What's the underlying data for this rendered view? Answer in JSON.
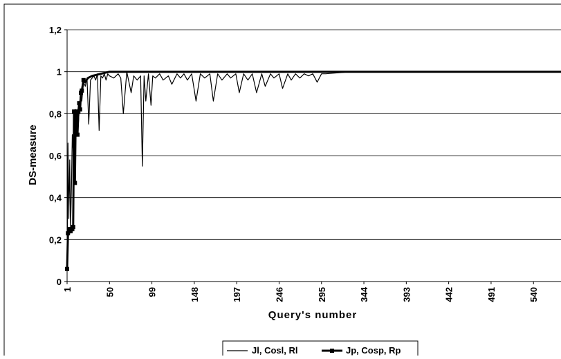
{
  "chart_data": {
    "type": "line",
    "xlabel": "Query's number",
    "ylabel": "DS-measure",
    "title": "",
    "ylim": [
      0,
      1.2
    ],
    "xlim": [
      1,
      580
    ],
    "y_ticks": [
      "0",
      "0,2",
      "0,4",
      "0,6",
      "0,8",
      "1",
      "1,2"
    ],
    "y_tick_values": [
      0,
      0.2,
      0.4,
      0.6,
      0.8,
      1.0,
      1.2
    ],
    "x_ticks": [
      "1",
      "50",
      "99",
      "148",
      "197",
      "246",
      "295",
      "344",
      "393",
      "442",
      "491",
      "540"
    ],
    "x_tick_values": [
      1,
      50,
      99,
      148,
      197,
      246,
      295,
      344,
      393,
      442,
      491,
      540
    ],
    "grid": "horizontal",
    "legend_position": "bottom",
    "series": [
      {
        "name": "Jl, Cosl, Rl",
        "color": "#000000",
        "marker": "none",
        "x": [
          1,
          2,
          3,
          4,
          5,
          6,
          7,
          8,
          9,
          10,
          11,
          12,
          13,
          14,
          15,
          16,
          18,
          20,
          22,
          24,
          26,
          28,
          30,
          32,
          34,
          36,
          38,
          40,
          42,
          44,
          46,
          48,
          50,
          55,
          60,
          63,
          66,
          70,
          75,
          78,
          82,
          86,
          88,
          90,
          92,
          95,
          98,
          100,
          103,
          108,
          112,
          118,
          122,
          128,
          132,
          136,
          140,
          145,
          150,
          155,
          160,
          166,
          170,
          175,
          180,
          186,
          190,
          196,
          200,
          205,
          210,
          215,
          220,
          226,
          230,
          236,
          240,
          246,
          250,
          256,
          260,
          265,
          270,
          275,
          280,
          285,
          290,
          295,
          300,
          330,
          360,
          400,
          450,
          500,
          540,
          580
        ],
        "values": [
          0.06,
          0.66,
          0.3,
          0.58,
          0.25,
          0.45,
          0.7,
          0.62,
          0.8,
          0.68,
          0.82,
          0.76,
          0.7,
          0.75,
          0.82,
          0.88,
          0.86,
          0.95,
          0.93,
          0.97,
          0.75,
          0.96,
          0.97,
          0.98,
          0.96,
          0.99,
          0.72,
          0.98,
          0.97,
          0.99,
          0.96,
          0.99,
          0.98,
          0.97,
          0.99,
          0.97,
          0.8,
          1.0,
          0.9,
          0.98,
          0.96,
          0.98,
          0.55,
          0.98,
          0.86,
          0.99,
          0.84,
          0.98,
          0.97,
          0.99,
          0.96,
          0.98,
          0.94,
          0.99,
          0.97,
          0.99,
          0.96,
          0.99,
          0.86,
          0.99,
          0.97,
          0.99,
          0.86,
          0.99,
          0.96,
          0.99,
          0.97,
          0.99,
          0.9,
          0.99,
          0.96,
          0.99,
          0.9,
          0.99,
          0.93,
          0.99,
          0.97,
          0.99,
          0.92,
          0.99,
          0.96,
          0.99,
          0.97,
          0.99,
          0.98,
          0.99,
          0.95,
          0.99,
          0.99,
          1.0,
          1.0,
          1.0,
          1.0,
          1.0,
          1.0,
          1.0
        ]
      },
      {
        "name": "Jp, Cosp, Rp",
        "color": "#000000",
        "marker": "square",
        "x": [
          1,
          2,
          3,
          4,
          5,
          6,
          7,
          8,
          9,
          10,
          11,
          12,
          13,
          14,
          15,
          16,
          17,
          18,
          20,
          22,
          25,
          30,
          40,
          50,
          60,
          100,
          200,
          300,
          400,
          500,
          580
        ],
        "values": [
          0.06,
          0.23,
          0.24,
          0.25,
          0.24,
          0.25,
          0.25,
          0.26,
          0.81,
          0.47,
          0.81,
          0.8,
          0.7,
          0.81,
          0.85,
          0.82,
          0.9,
          0.91,
          0.96,
          0.95,
          0.97,
          0.98,
          0.99,
          1.0,
          1.0,
          1.0,
          1.0,
          1.0,
          1.0,
          1.0,
          1.0
        ]
      }
    ]
  }
}
